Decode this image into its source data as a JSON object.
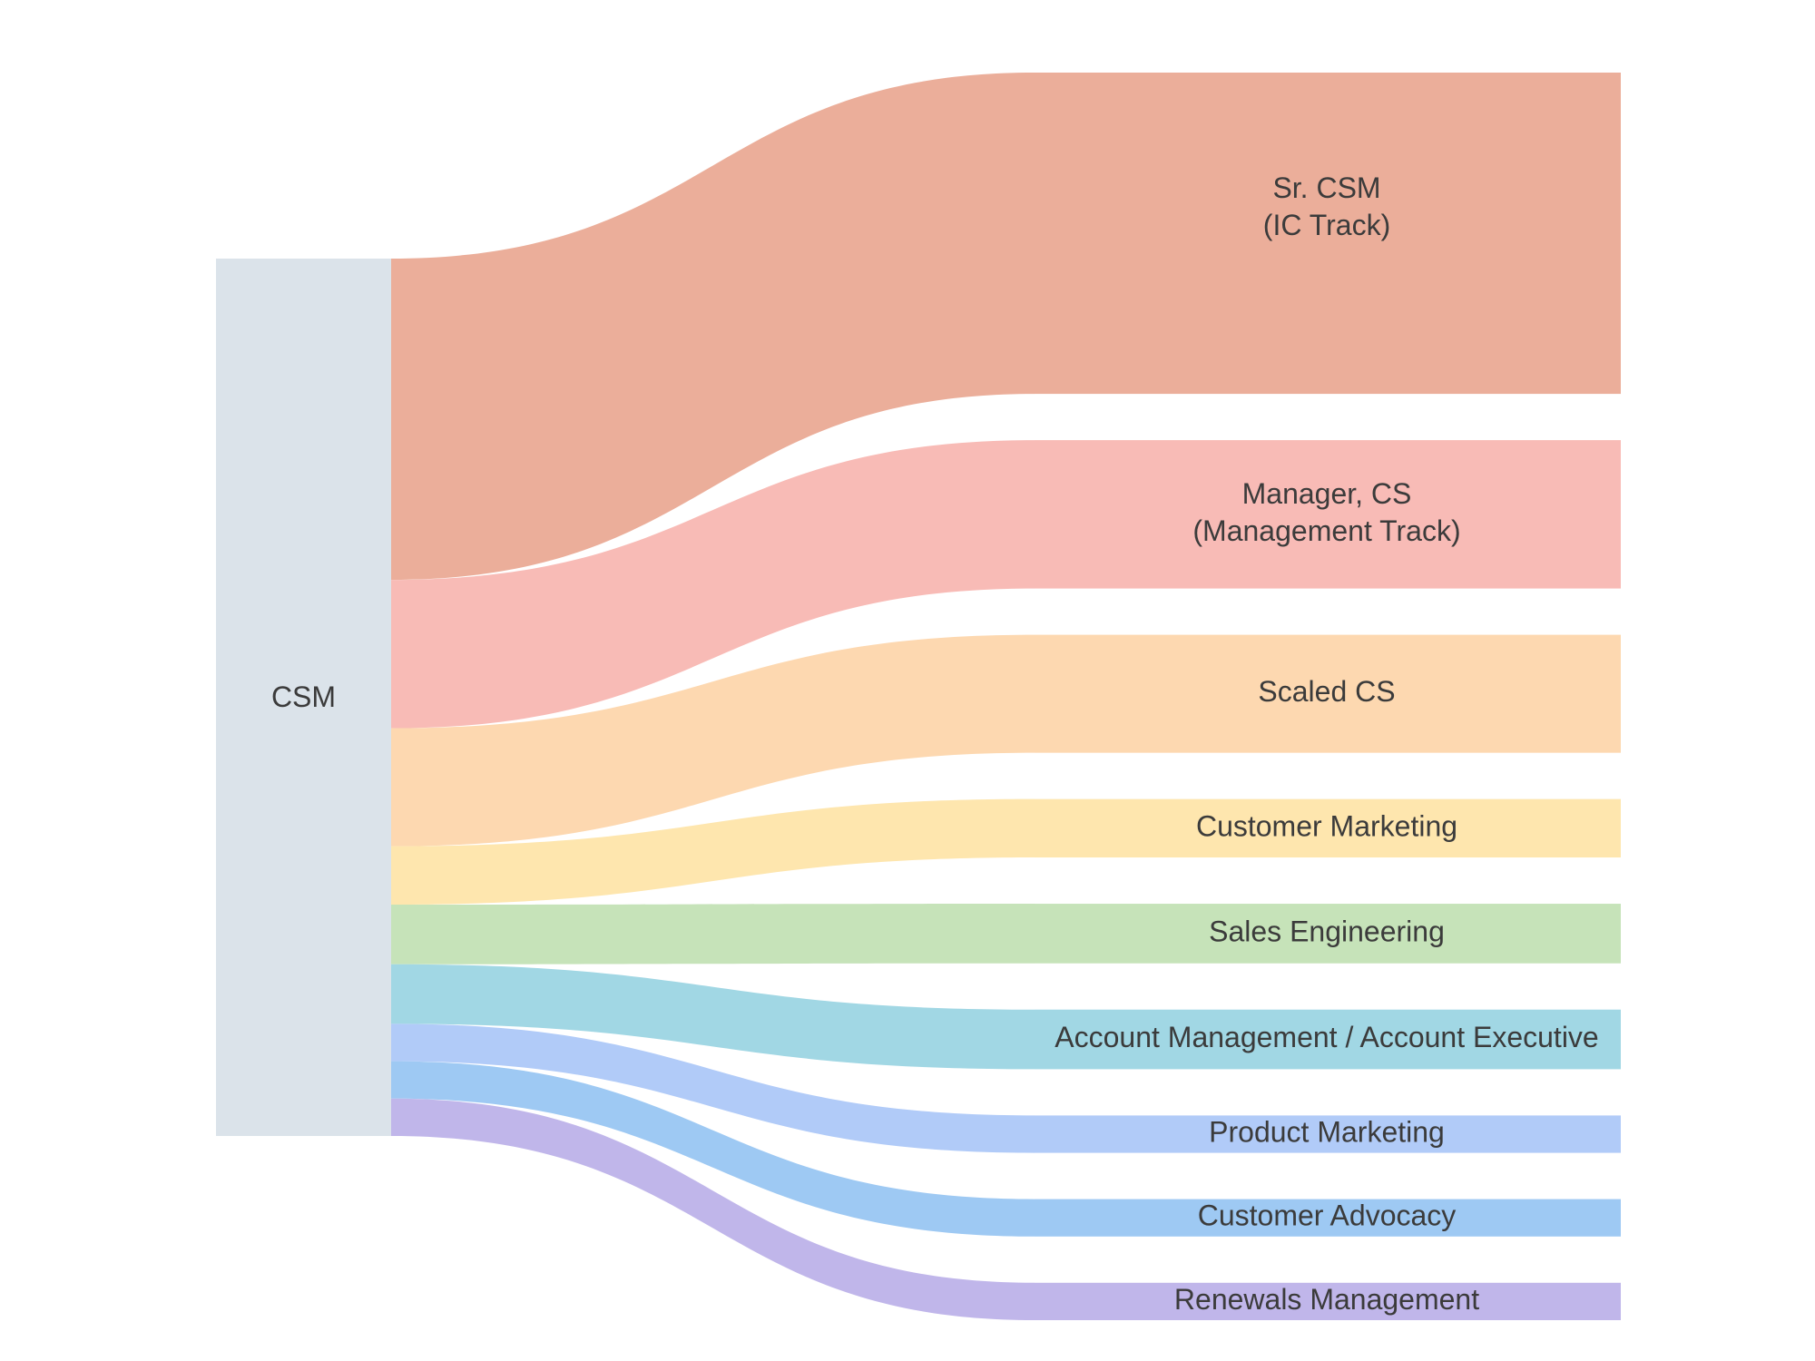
{
  "chart_data": {
    "type": "sankey",
    "source": {
      "label": "CSM",
      "color": "#dbe3ea"
    },
    "targets": [
      {
        "id": "sr-csm",
        "lines": [
          "Sr. CSM",
          "(IC Track)"
        ],
        "value": 27.5,
        "color": "#ebae9a"
      },
      {
        "id": "manager-cs",
        "lines": [
          "Manager, CS",
          "(Management Track)"
        ],
        "value": 12.7,
        "color": "#f8bbb6"
      },
      {
        "id": "scaled-cs",
        "lines": [
          "Scaled CS"
        ],
        "value": 10.1,
        "color": "#fdd8b0"
      },
      {
        "id": "customer-marketing",
        "lines": [
          "Customer Marketing"
        ],
        "value": 5.0,
        "color": "#fee6ae"
      },
      {
        "id": "sales-engineering",
        "lines": [
          "Sales Engineering"
        ],
        "value": 5.1,
        "color": "#c6e3b9"
      },
      {
        "id": "account-management",
        "lines": [
          "Account Management / Account Executive"
        ],
        "value": 5.1,
        "color": "#a1d7e4"
      },
      {
        "id": "product-marketing",
        "lines": [
          "Product Marketing"
        ],
        "value": 3.2,
        "color": "#b1cbf8"
      },
      {
        "id": "customer-advocacy",
        "lines": [
          "Customer Advocacy"
        ],
        "value": 3.2,
        "color": "#9ec9f3"
      },
      {
        "id": "renewals-management",
        "lines": [
          "Renewals Management"
        ],
        "value": 3.2,
        "color": "#c0b6ea"
      }
    ]
  }
}
